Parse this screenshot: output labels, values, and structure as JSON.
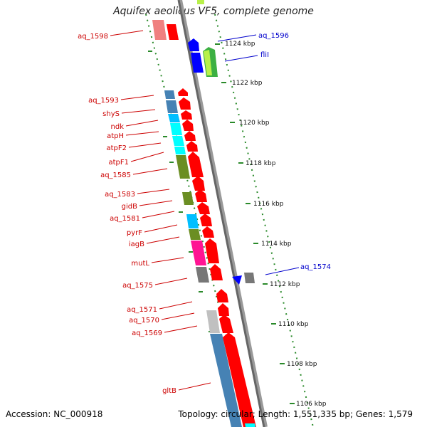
{
  "header": {
    "title": "Aquifex aeolicus VF5, complete genome"
  },
  "footer": {
    "accession": "Accession: NC_000918",
    "topology": "Topology: circular; Length: 1,551,335 bp; Genes: 1,579"
  },
  "ticks": [
    "1124 kbp",
    "1122 kbp",
    "1120 kbp",
    "1118 kbp",
    "1116 kbp",
    "1114 kbp",
    "1112 kbp",
    "1110 kbp",
    "1108 kbp",
    "1106 kbp"
  ],
  "gene_labels_left": [
    "aq_1598",
    "aq_1593",
    "shyS",
    "ndk",
    "atpH",
    "atpF2",
    "atpF1",
    "aq_1585",
    "aq_1583",
    "gidB",
    "aq_1581",
    "pyrF",
    "iagB",
    "mutL",
    "aq_1575",
    "aq_1571",
    "aq_1570",
    "aq_1569",
    "gltB"
  ],
  "gene_labels_right": [
    "aq_1596",
    "fliI",
    "aq_1574"
  ],
  "colors": {
    "red": "#ff0000",
    "blue": "#0000ff",
    "steelblue": "#4682b4",
    "skyblue": "#00bfff",
    "cyan": "#00ffff",
    "olive": "#6b8e23",
    "magenta": "#ff1493",
    "gray": "#777777",
    "lightgray": "#c0c0c0",
    "pink": "#f08080",
    "green": "#3cb043",
    "lime": "#b8f04a"
  }
}
